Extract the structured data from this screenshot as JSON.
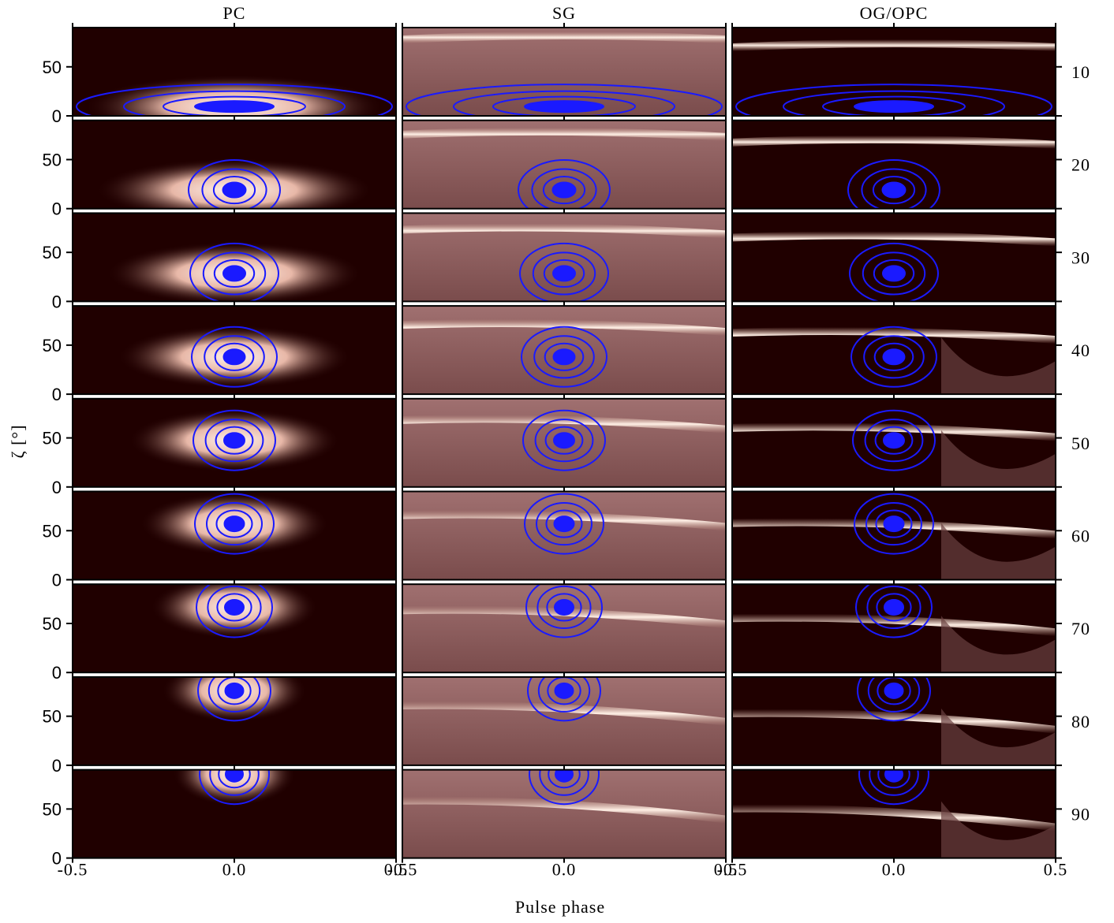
{
  "chart_data": {
    "type": "phaseplot-grid",
    "columns": [
      "PC",
      "SG",
      "OG/OPC"
    ],
    "rows": [
      10,
      20,
      30,
      40,
      50,
      60,
      70,
      80,
      90
    ],
    "xlabel": "Pulse phase",
    "ylabel": "ζ [°]",
    "xlim": [
      -0.5,
      0.5
    ],
    "xticks": [
      {
        "value": -0.5,
        "label": "-0.5"
      },
      {
        "value": 0,
        "label": "0.0"
      },
      {
        "value": 0.5,
        "label": "0.5"
      }
    ],
    "ylim": [
      0,
      90
    ],
    "yticks": [
      0,
      50
    ],
    "contour_color": "#1a1aff"
  }
}
